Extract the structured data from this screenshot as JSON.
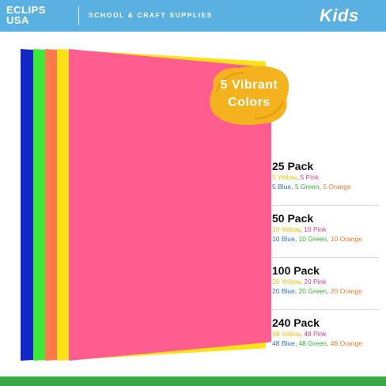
{
  "header": {
    "brand_line1": "ECLIPS",
    "brand_line2": "USA",
    "tagline": "SCHOOL & CRAFT SUPPLIES",
    "kids_label": "Kids"
  },
  "colors": {
    "header_bg": "#5ab0e0",
    "badge": "#f3b21e",
    "footer": "#3aa847",
    "sheet_blue": "#1428c8",
    "sheet_green": "#3ee83a",
    "sheet_orange": "#ff7a4a",
    "sheet_yellow": "#ffe11a",
    "sheet_pink": "#ff5c8f"
  },
  "badge": {
    "line1": "5 Vibrant",
    "line2": "Colors"
  },
  "packs": [
    {
      "title": "25 Pack",
      "yellow": "5 Yellow",
      "pink": "5 Pink",
      "blue": "5 Blue",
      "green": "5 Green",
      "orange": "5 Orange"
    },
    {
      "title": "50 Pack",
      "yellow": "10 Yellow",
      "pink": "10 Pink",
      "blue": "10 Blue",
      "green": "10 Green",
      "orange": "10 Orange"
    },
    {
      "title": "100 Pack",
      "yellow": "20 Yellow",
      "pink": "20 Pink",
      "blue": "20 Blue",
      "green": "20 Green",
      "orange": "20 Orange"
    },
    {
      "title": "240 Pack",
      "yellow": "48 Yellow",
      "pink": "48 Pink",
      "blue": "48 Blue",
      "green": "48 Green",
      "orange": "48 Orange"
    }
  ]
}
